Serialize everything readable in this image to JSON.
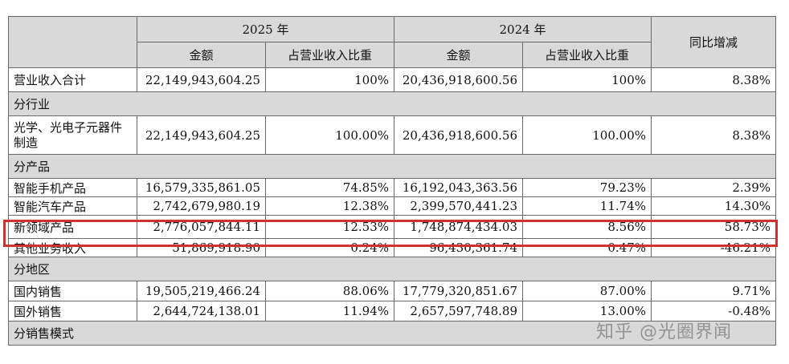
{
  "header": {
    "year_2025": "2025 年",
    "year_2024": "2024 年",
    "col_amount_2025": "金额",
    "col_share_2025": "占营业收入比重",
    "col_amount_2024": "金额",
    "col_share_2024": "占营业收入比重",
    "col_yoy": "同比增减"
  },
  "rows": [
    {
      "type": "data",
      "label": "营业收入合计",
      "amt25": "22,149,943,604.25",
      "pct25": "100%",
      "amt24": "20,436,918,600.56",
      "pct24": "100%",
      "yoy": "8.38%"
    },
    {
      "type": "section",
      "label": "分行业"
    },
    {
      "type": "data",
      "label": "光学、光电子元器件制造",
      "amt25": "22,149,943,604.25",
      "pct25": "100.00%",
      "amt24": "20,436,918,600.56",
      "pct24": "100.00%",
      "yoy": "8.38%"
    },
    {
      "type": "section",
      "label": "分产品"
    },
    {
      "type": "data",
      "label": "智能手机产品",
      "amt25": "16,579,335,861.05",
      "pct25": "74.85%",
      "amt24": "16,192,043,363.56",
      "pct24": "79.23%",
      "yoy": "2.39%"
    },
    {
      "type": "data",
      "label": "智能汽车产品",
      "amt25": "2,742,679,980.19",
      "pct25": "12.38%",
      "amt24": "2,399,570,441.23",
      "pct24": "11.74%",
      "yoy": "14.30%"
    },
    {
      "type": "data",
      "label": "新领域产品",
      "amt25": "2,776,057,844.11",
      "pct25": "12.53%",
      "amt24": "1,748,874,434.03",
      "pct24": "8.56%",
      "yoy": "58.73%"
    },
    {
      "type": "data",
      "label": "其他业务收入",
      "amt25": "51,869,918.90",
      "pct25": "0.24%",
      "amt24": "96,430,361.74",
      "pct24": "0.47%",
      "yoy": "-46.21%"
    },
    {
      "type": "section",
      "label": "分地区"
    },
    {
      "type": "data",
      "label": "国内销售",
      "amt25": "19,505,219,466.24",
      "pct25": "88.06%",
      "amt24": "17,779,320,851.67",
      "pct24": "87.00%",
      "yoy": "9.71%"
    },
    {
      "type": "data",
      "label": "国外销售",
      "amt25": "2,644,724,138.01",
      "pct25": "11.94%",
      "amt24": "2,657,597,748.89",
      "pct24": "13.00%",
      "yoy": "-0.48%"
    },
    {
      "type": "section",
      "label": "分销售模式"
    }
  ],
  "watermark": "知乎 @光圈界闻",
  "highlight_color": "#d32f2f"
}
